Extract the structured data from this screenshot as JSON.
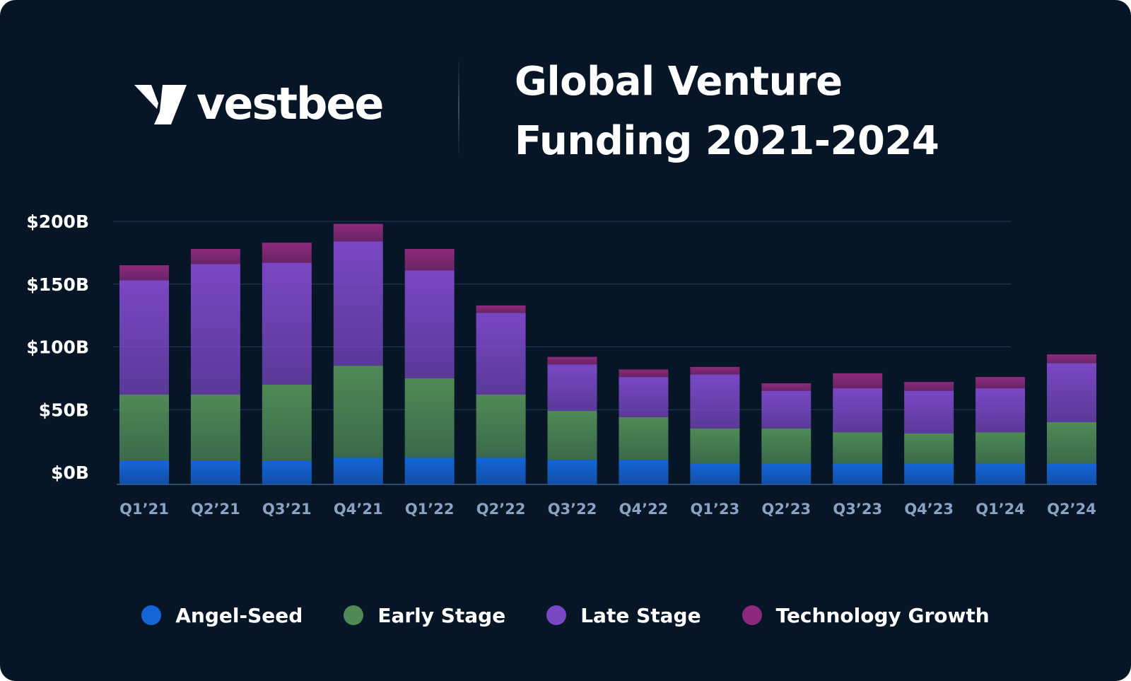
{
  "brand": {
    "name": "vestbee"
  },
  "chart_data": {
    "type": "bar",
    "stacked": true,
    "title_lines": [
      "Global Venture",
      "Funding 2021-2024"
    ],
    "categories": [
      "Q1’21",
      "Q2’21",
      "Q3’21",
      "Q4’21",
      "Q1’22",
      "Q2’22",
      "Q3’22",
      "Q4’22",
      "Q1’23",
      "Q2’23",
      "Q3’23",
      "Q4’23",
      "Q1’24",
      "Q2’24"
    ],
    "series": [
      {
        "name": "Angel-Seed",
        "color": "#1565d8",
        "values": [
          9,
          9,
          9,
          12,
          12,
          12,
          10,
          10,
          7,
          7,
          7,
          7,
          7,
          7
        ]
      },
      {
        "name": "Early Stage",
        "color": "#4f8a57",
        "values": [
          53,
          53,
          61,
          73,
          63,
          50,
          39,
          34,
          28,
          28,
          25,
          24,
          25,
          33
        ]
      },
      {
        "name": "Late Stage",
        "color": "#7a47c4",
        "values": [
          91,
          104,
          97,
          99,
          86,
          65,
          37,
          32,
          43,
          30,
          35,
          34,
          35,
          47
        ]
      },
      {
        "name": "Technology Growth",
        "color": "#8e2a7d",
        "values": [
          12,
          12,
          16,
          14,
          17,
          6,
          6,
          6,
          6,
          6,
          12,
          7,
          9,
          7
        ]
      }
    ],
    "yticks": [
      "$200B",
      "$150B",
      "$100B",
      "$50B",
      "$0B"
    ],
    "ytick_values": [
      200,
      150,
      100,
      50,
      0
    ],
    "ylim": [
      0,
      200
    ],
    "xlabel": "",
    "ylabel": "",
    "grid": true,
    "legend_position": "bottom-center"
  }
}
